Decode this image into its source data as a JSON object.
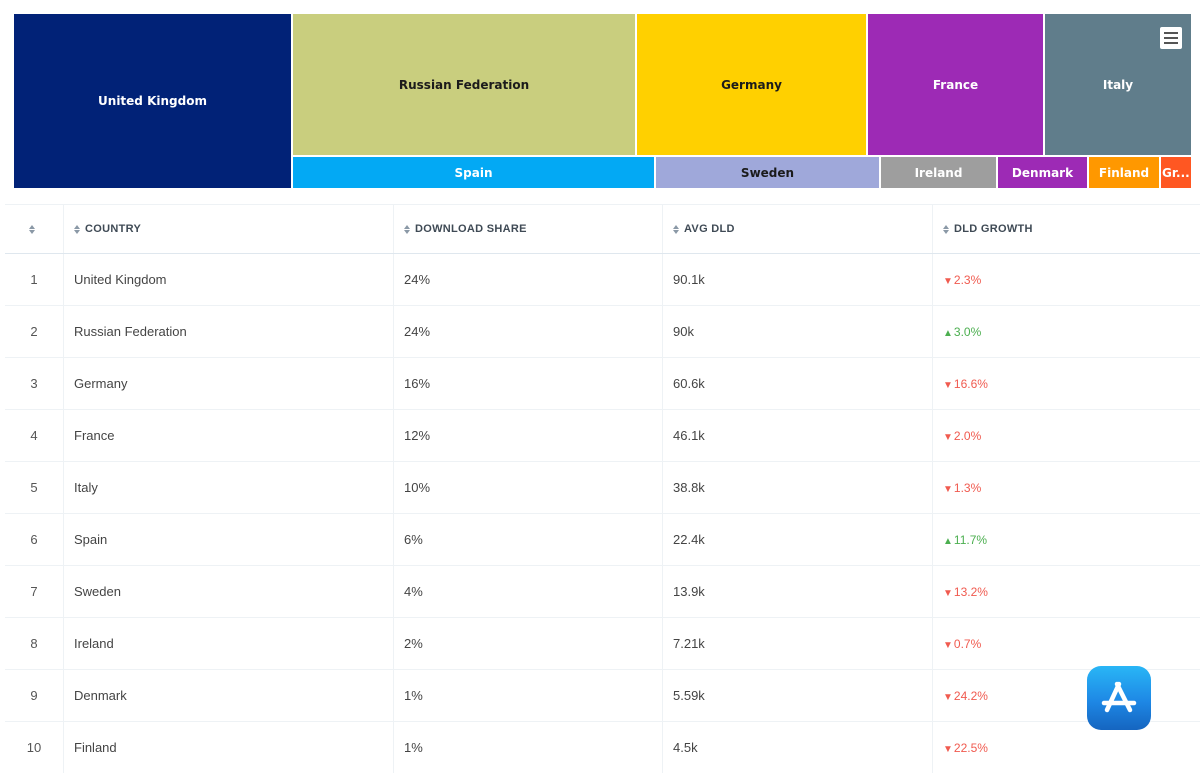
{
  "treemap": {
    "tiles": [
      {
        "label": "United Kingdom",
        "color": "#012277"
      },
      {
        "label": "Russian Federation",
        "color": "#c9ce7e"
      },
      {
        "label": "Germany",
        "color": "#ffd000"
      },
      {
        "label": "France",
        "color": "#9d2ab5"
      },
      {
        "label": "Italy",
        "color": "#607d8b"
      },
      {
        "label": "Spain",
        "color": "#03a9f4"
      },
      {
        "label": "Sweden",
        "color": "#9fa8da"
      },
      {
        "label": "Ireland",
        "color": "#9e9e9e"
      },
      {
        "label": "Denmark",
        "color": "#9d2ab5"
      },
      {
        "label": "Finland",
        "color": "#ff9800"
      },
      {
        "label": "Gr...",
        "color": "#ff5722"
      }
    ],
    "menu_icon": "hamburger-icon"
  },
  "table": {
    "headers": {
      "rank": "",
      "country": "COUNTRY",
      "download_share": "DOWNLOAD SHARE",
      "avg_dld": "AVG DLD",
      "dld_growth": "DLD GROWTH"
    },
    "rows": [
      {
        "rank": "1",
        "country": "United Kingdom",
        "share": "24%",
        "avg": "90.1k",
        "growth": "2.3%",
        "dir": "down"
      },
      {
        "rank": "2",
        "country": "Russian Federation",
        "share": "24%",
        "avg": "90k",
        "growth": "3.0%",
        "dir": "up"
      },
      {
        "rank": "3",
        "country": "Germany",
        "share": "16%",
        "avg": "60.6k",
        "growth": "16.6%",
        "dir": "down"
      },
      {
        "rank": "4",
        "country": "France",
        "share": "12%",
        "avg": "46.1k",
        "growth": "2.0%",
        "dir": "down"
      },
      {
        "rank": "5",
        "country": "Italy",
        "share": "10%",
        "avg": "38.8k",
        "growth": "1.3%",
        "dir": "down"
      },
      {
        "rank": "6",
        "country": "Spain",
        "share": "6%",
        "avg": "22.4k",
        "growth": "11.7%",
        "dir": "up"
      },
      {
        "rank": "7",
        "country": "Sweden",
        "share": "4%",
        "avg": "13.9k",
        "growth": "13.2%",
        "dir": "down"
      },
      {
        "rank": "8",
        "country": "Ireland",
        "share": "2%",
        "avg": "7.21k",
        "growth": "0.7%",
        "dir": "down"
      },
      {
        "rank": "9",
        "country": "Denmark",
        "share": "1%",
        "avg": "5.59k",
        "growth": "24.2%",
        "dir": "down"
      },
      {
        "rank": "10",
        "country": "Finland",
        "share": "1%",
        "avg": "4.5k",
        "growth": "22.5%",
        "dir": "down"
      }
    ]
  },
  "colors": {
    "negative": "#f05a4f",
    "positive": "#4caf50"
  },
  "badge_icon": "app-store-icon"
}
